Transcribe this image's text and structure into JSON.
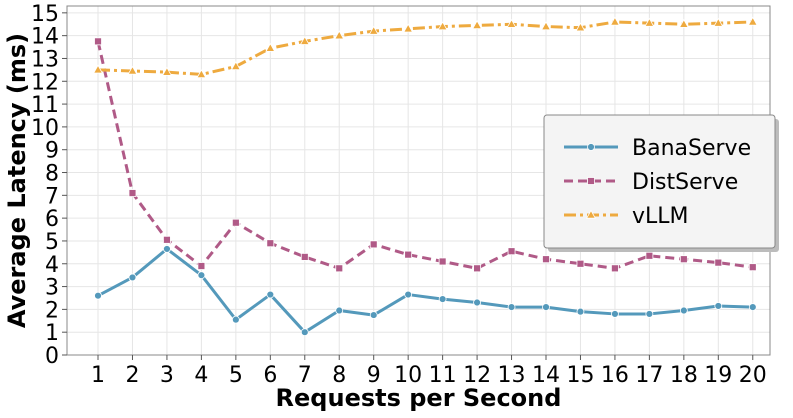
{
  "chart_data": {
    "type": "line",
    "xlabel": "Requests per Second",
    "ylabel": "Average Latency (ms)",
    "x": [
      1,
      2,
      3,
      4,
      5,
      6,
      7,
      8,
      9,
      10,
      11,
      12,
      13,
      14,
      15,
      16,
      17,
      18,
      19,
      20
    ],
    "xlim": [
      0.1,
      20.5
    ],
    "ylim": [
      0,
      15.3
    ],
    "yticks": [
      0,
      1,
      2,
      3,
      4,
      5,
      6,
      7,
      8,
      9,
      10,
      11,
      12,
      13,
      14,
      15
    ],
    "grid": true,
    "legend_position": "center-right",
    "series": [
      {
        "name": "BanaServe",
        "color": "#5499bb",
        "style": "solid",
        "marker": "circle",
        "values": [
          2.6,
          3.4,
          4.65,
          3.5,
          1.55,
          2.65,
          1.0,
          1.95,
          1.75,
          2.65,
          2.45,
          2.3,
          2.1,
          2.1,
          1.9,
          1.8,
          1.8,
          1.95,
          2.15,
          2.1
        ]
      },
      {
        "name": "DistServe",
        "color": "#b05a87",
        "style": "dashed",
        "marker": "square",
        "values": [
          13.75,
          7.1,
          5.05,
          3.9,
          5.8,
          4.9,
          4.3,
          3.8,
          4.85,
          4.4,
          4.1,
          3.8,
          4.55,
          4.2,
          4.0,
          3.8,
          4.35,
          4.2,
          4.05,
          3.85
        ]
      },
      {
        "name": "vLLM",
        "color": "#eeaa3f",
        "style": "dashdot",
        "marker": "triangle",
        "values": [
          12.5,
          12.45,
          12.4,
          12.3,
          12.65,
          13.45,
          13.75,
          14.0,
          14.2,
          14.3,
          14.4,
          14.45,
          14.5,
          14.4,
          14.35,
          14.6,
          14.55,
          14.5,
          14.55,
          14.6
        ]
      }
    ]
  }
}
